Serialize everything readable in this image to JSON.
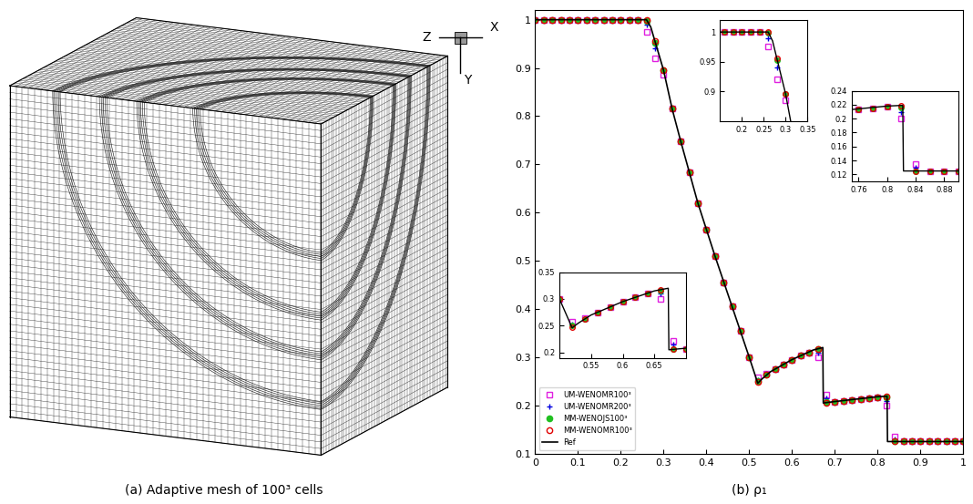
{
  "mesh": {
    "caption": "(a) Adaptive mesh of 100³ cells",
    "axes_labels": [
      "Z",
      "X",
      "Y"
    ]
  },
  "chart_data": {
    "type": "line",
    "title": "(b) ρ₁",
    "x": [
      0,
      0.02,
      0.04,
      0.06,
      0.08,
      0.1,
      0.12,
      0.14,
      0.16,
      0.18,
      0.2,
      0.22,
      0.24,
      0.26,
      0.28,
      0.3,
      0.32,
      0.34,
      0.36,
      0.38,
      0.4,
      0.42,
      0.44,
      0.46,
      0.48,
      0.5,
      0.52,
      0.54,
      0.56,
      0.58,
      0.6,
      0.62,
      0.64,
      0.66,
      0.68,
      0.7,
      0.72,
      0.74,
      0.76,
      0.78,
      0.8,
      0.82,
      0.84,
      0.86,
      0.88,
      0.9,
      0.92,
      0.94,
      0.96,
      0.98,
      1
    ],
    "series": [
      {
        "name": "UM-WENOMR100³",
        "color": "#e020e0",
        "marker": "square",
        "line_style": "none",
        "values": [
          1,
          1,
          1,
          1,
          1,
          1,
          1,
          1,
          1,
          1,
          1,
          1,
          1,
          0.975,
          0.92,
          0.885,
          0.815,
          0.748,
          0.683,
          0.62,
          0.565,
          0.51,
          0.455,
          0.405,
          0.355,
          0.3,
          0.258,
          0.265,
          0.275,
          0.285,
          0.295,
          0.303,
          0.31,
          0.3,
          0.222,
          0.207,
          0.209,
          0.211,
          0.213,
          0.215,
          0.217,
          0.2,
          0.135,
          0.125,
          0.125,
          0.125,
          0.125,
          0.125,
          0.125,
          0.125,
          0.125
        ]
      },
      {
        "name": "UM-WENOMR200³",
        "color": "#0000e0",
        "marker": "plus",
        "line_style": "none",
        "values": [
          1,
          1,
          1,
          1,
          1,
          1,
          1,
          1,
          1,
          1,
          1,
          1,
          1,
          0.99,
          0.94,
          0.895,
          0.815,
          0.748,
          0.683,
          0.62,
          0.565,
          0.51,
          0.455,
          0.405,
          0.355,
          0.3,
          0.252,
          0.263,
          0.275,
          0.285,
          0.295,
          0.303,
          0.31,
          0.31,
          0.215,
          0.207,
          0.209,
          0.211,
          0.213,
          0.215,
          0.217,
          0.21,
          0.13,
          0.125,
          0.125,
          0.125,
          0.125,
          0.125,
          0.125,
          0.125,
          0.125
        ]
      },
      {
        "name": "MM-WENOJS100³",
        "color": "#20c020",
        "marker": "filled_circle",
        "line_style": "none",
        "values": [
          1,
          1,
          1,
          1,
          1,
          1,
          1,
          1,
          1,
          1,
          1,
          1,
          1,
          0.998,
          0.952,
          0.895,
          0.815,
          0.748,
          0.683,
          0.62,
          0.565,
          0.51,
          0.455,
          0.405,
          0.355,
          0.3,
          0.25,
          0.263,
          0.275,
          0.285,
          0.295,
          0.303,
          0.31,
          0.316,
          0.207,
          0.207,
          0.209,
          0.211,
          0.213,
          0.215,
          0.217,
          0.216,
          0.125,
          0.125,
          0.125,
          0.125,
          0.125,
          0.125,
          0.125,
          0.125,
          0.125
        ]
      },
      {
        "name": "MM-WENOMR100³",
        "color": "#e00000",
        "marker": "circle",
        "line_style": "none",
        "values": [
          1,
          1,
          1,
          1,
          1,
          1,
          1,
          1,
          1,
          1,
          1,
          1,
          1,
          1,
          0.955,
          0.895,
          0.815,
          0.748,
          0.683,
          0.62,
          0.565,
          0.51,
          0.455,
          0.405,
          0.355,
          0.3,
          0.248,
          0.263,
          0.275,
          0.285,
          0.295,
          0.303,
          0.31,
          0.317,
          0.206,
          0.207,
          0.209,
          0.211,
          0.213,
          0.215,
          0.217,
          0.218,
          0.125,
          0.125,
          0.125,
          0.125,
          0.125,
          0.125,
          0.125,
          0.125,
          0.125
        ]
      },
      {
        "name": "Ref",
        "color": "#000000",
        "line_style": "solid",
        "x": [
          0,
          0.26,
          0.27,
          0.28,
          0.3,
          0.32,
          0.34,
          0.38,
          0.42,
          0.46,
          0.5,
          0.52,
          0.53,
          0.55,
          0.6,
          0.65,
          0.672,
          0.673,
          0.7,
          0.75,
          0.8,
          0.822,
          0.823,
          1
        ],
        "values": [
          1,
          1,
          0.985,
          0.955,
          0.895,
          0.815,
          0.748,
          0.62,
          0.51,
          0.405,
          0.3,
          0.246,
          0.255,
          0.27,
          0.295,
          0.315,
          0.32,
          0.205,
          0.208,
          0.213,
          0.218,
          0.219,
          0.125,
          0.125
        ]
      }
    ],
    "xlim": [
      0,
      1
    ],
    "xticks": [
      0,
      0.1,
      0.2,
      0.3,
      0.4,
      0.5,
      0.6,
      0.7,
      0.8,
      0.9,
      1
    ],
    "ylim": [
      0.1,
      1.02
    ],
    "yticks": [
      0.1,
      0.2,
      0.3,
      0.4,
      0.5,
      0.6,
      0.7,
      0.8,
      0.9,
      1
    ],
    "grid": false,
    "legend": "lower left",
    "insets": [
      {
        "xlim": [
          0.15,
          0.35
        ],
        "xticks": [
          0.2,
          0.25,
          0.3,
          0.35
        ],
        "ylim": [
          0.85,
          1.02
        ],
        "yticks": [
          0.9,
          0.95,
          1
        ]
      },
      {
        "xlim": [
          0.5,
          0.7
        ],
        "xticks": [
          0.55,
          0.6,
          0.65
        ],
        "ylim": [
          0.19,
          0.35
        ],
        "yticks": [
          0.2,
          0.25,
          0.3,
          0.35
        ]
      },
      {
        "xlim": [
          0.75,
          0.9
        ],
        "xticks": [
          0.76,
          0.8,
          0.84,
          0.88
        ],
        "ylim": [
          0.11,
          0.24
        ],
        "yticks": [
          0.12,
          0.14,
          0.16,
          0.18,
          0.2,
          0.22,
          0.24
        ]
      }
    ]
  }
}
